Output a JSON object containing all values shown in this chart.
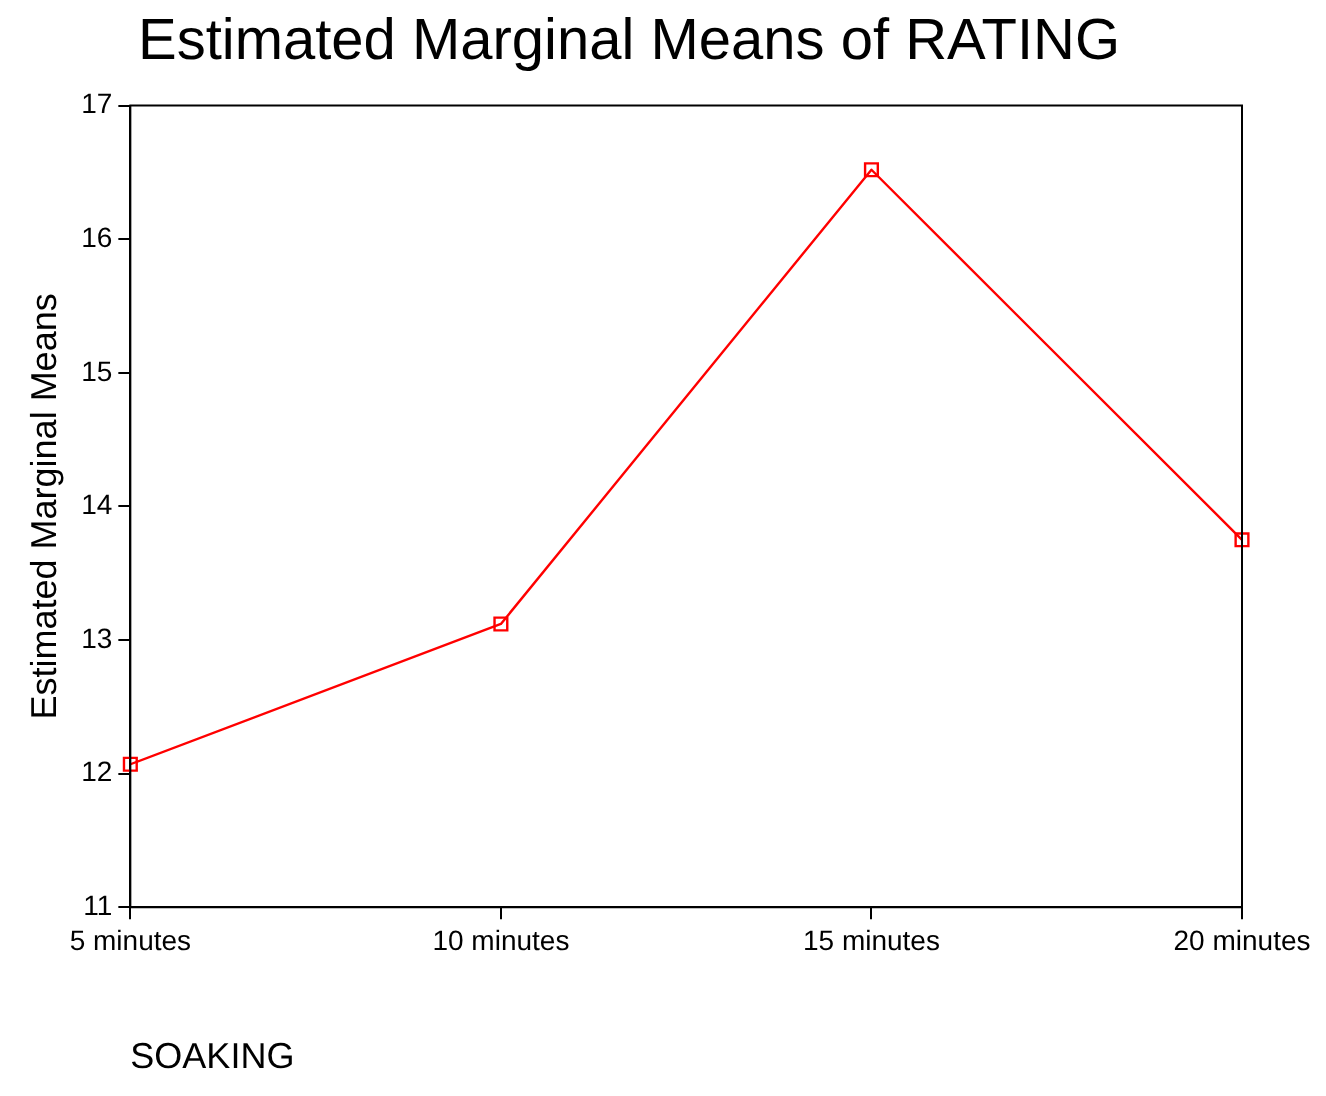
{
  "chart_data": {
    "type": "line",
    "title": "Estimated Marginal Means of RATING",
    "xlabel": "SOAKING",
    "ylabel": "Estimated Marginal Means",
    "categories": [
      "5 minutes",
      "10 minutes",
      "15 minutes",
      "20 minutes"
    ],
    "series": [
      {
        "color": "#ff0000",
        "values": [
          12.07,
          13.12,
          16.52,
          13.75
        ]
      }
    ],
    "ylim": [
      11,
      17
    ],
    "yticks": [
      11,
      12,
      13,
      14,
      15,
      16,
      17
    ],
    "grid": false,
    "legend": false,
    "marker": "square",
    "line_style": "solid"
  }
}
